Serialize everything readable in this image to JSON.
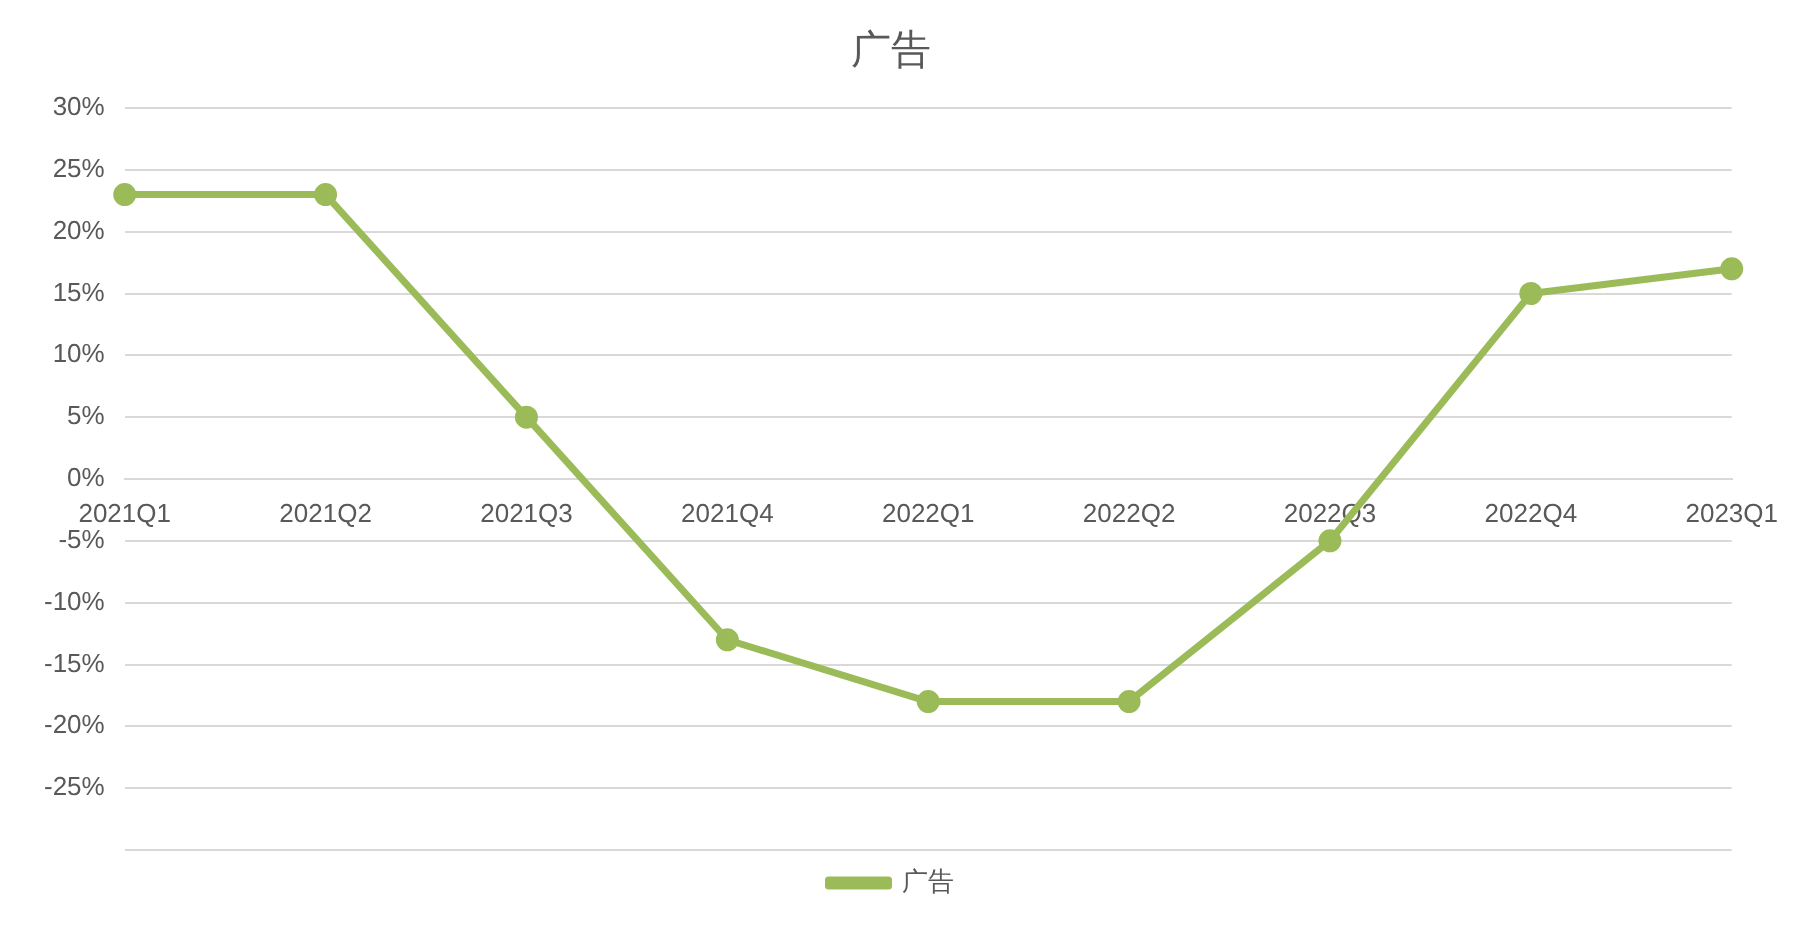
{
  "chart_data": {
    "type": "line",
    "title": "广告",
    "categories": [
      "2021Q1",
      "2021Q2",
      "2021Q3",
      "2021Q4",
      "2022Q1",
      "2022Q2",
      "2022Q3",
      "2022Q4",
      "2023Q1"
    ],
    "series": [
      {
        "name": "广告",
        "color": "#9bbb59",
        "values": [
          23,
          23,
          5,
          -13,
          -18,
          -18,
          -5,
          15,
          17
        ]
      }
    ],
    "ylim": [
      -30,
      30
    ],
    "yticks": [
      {
        "value": -30,
        "label": null
      },
      {
        "value": -25,
        "label": "-25%"
      },
      {
        "value": -20,
        "label": "-20%"
      },
      {
        "value": -15,
        "label": "-15%"
      },
      {
        "value": -10,
        "label": "-10%"
      },
      {
        "value": -5,
        "label": "-5%"
      },
      {
        "value": 0,
        "label": "0%"
      },
      {
        "value": 5,
        "label": "5%"
      },
      {
        "value": 10,
        "label": "10%"
      },
      {
        "value": 15,
        "label": "15%"
      },
      {
        "value": 20,
        "label": "20%"
      },
      {
        "value": 25,
        "label": "25%"
      },
      {
        "value": 30,
        "label": "30%"
      }
    ],
    "grid": "y",
    "legend": "bottom",
    "marker": "circle",
    "line_style": "solid"
  }
}
